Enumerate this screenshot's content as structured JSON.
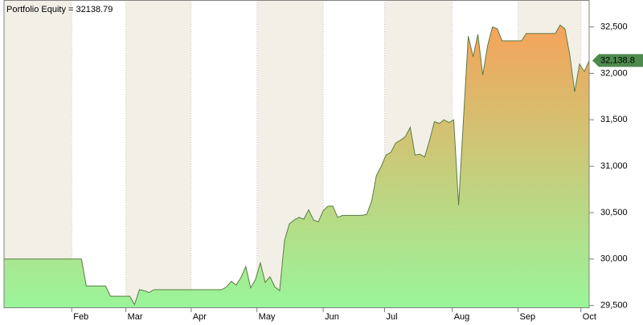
{
  "chart_data": {
    "type": "area",
    "title": "Portfolio Equity = 32138.79",
    "series": [
      {
        "name": "Portfolio Equity",
        "color": "#5d7b45",
        "values": [
          30000,
          30000,
          30000,
          30000,
          30000,
          30000,
          30000,
          30000,
          30000,
          30000,
          30000,
          30000,
          30000,
          30000,
          30000,
          30000,
          30000,
          29710,
          29710,
          29710,
          29710,
          29710,
          29600,
          29600,
          29600,
          29600,
          29600,
          29510,
          29670,
          29660,
          29640,
          29670,
          29670,
          29670,
          29670,
          29670,
          29670,
          29670,
          29670,
          29670,
          29670,
          29670,
          29670,
          29670,
          29670,
          29670,
          29700,
          29760,
          29720,
          29800,
          29920,
          29690,
          29780,
          29960,
          29750,
          29810,
          29700,
          29660,
          30200,
          30380,
          30420,
          30450,
          30430,
          30530,
          30420,
          30400,
          30520,
          30570,
          30570,
          30450,
          30470,
          30470,
          30470,
          30470,
          30470,
          30480,
          30620,
          30900,
          31000,
          31120,
          31150,
          31250,
          31280,
          31320,
          31420,
          31120,
          31130,
          31100,
          31280,
          31480,
          31460,
          31500,
          31470,
          31500,
          30580,
          31500,
          32400,
          32180,
          32420,
          31980,
          32300,
          32500,
          32480,
          32350,
          32350,
          32350,
          32350,
          32350,
          32430,
          32430,
          32430,
          32430,
          32430,
          32430,
          32430,
          32520,
          32480,
          32200,
          31800,
          32100,
          32020,
          32138.79
        ],
        "last_value_label": "32,138.8"
      }
    ],
    "gradient_colors": [
      "#f5a35a",
      "#9af59a"
    ],
    "xlim": [
      0,
      121
    ],
    "xticks": [
      {
        "value": 14,
        "label": "Feb"
      },
      {
        "value": 25.2,
        "label": "Mar"
      },
      {
        "value": 38.7,
        "label": "Apr"
      },
      {
        "value": 52.3,
        "label": "May"
      },
      {
        "value": 66,
        "label": "Jun"
      },
      {
        "value": 78.7,
        "label": "Jul"
      },
      {
        "value": 92.7,
        "label": "Aug"
      },
      {
        "value": 106.3,
        "label": "Sep"
      },
      {
        "value": 119.3,
        "label": "Oct"
      }
    ],
    "ylim": [
      29480,
      32790
    ],
    "yticks": [
      {
        "value": 29500,
        "label": "29,500"
      },
      {
        "value": 30000,
        "label": "30,000"
      },
      {
        "value": 30500,
        "label": "30,500"
      },
      {
        "value": 31000,
        "label": "31,000"
      },
      {
        "value": 31500,
        "label": "31,500"
      },
      {
        "value": 32000,
        "label": "32,000"
      },
      {
        "value": 32500,
        "label": "32,500"
      }
    ],
    "grid": true,
    "band_color": "#f2f0e6"
  }
}
